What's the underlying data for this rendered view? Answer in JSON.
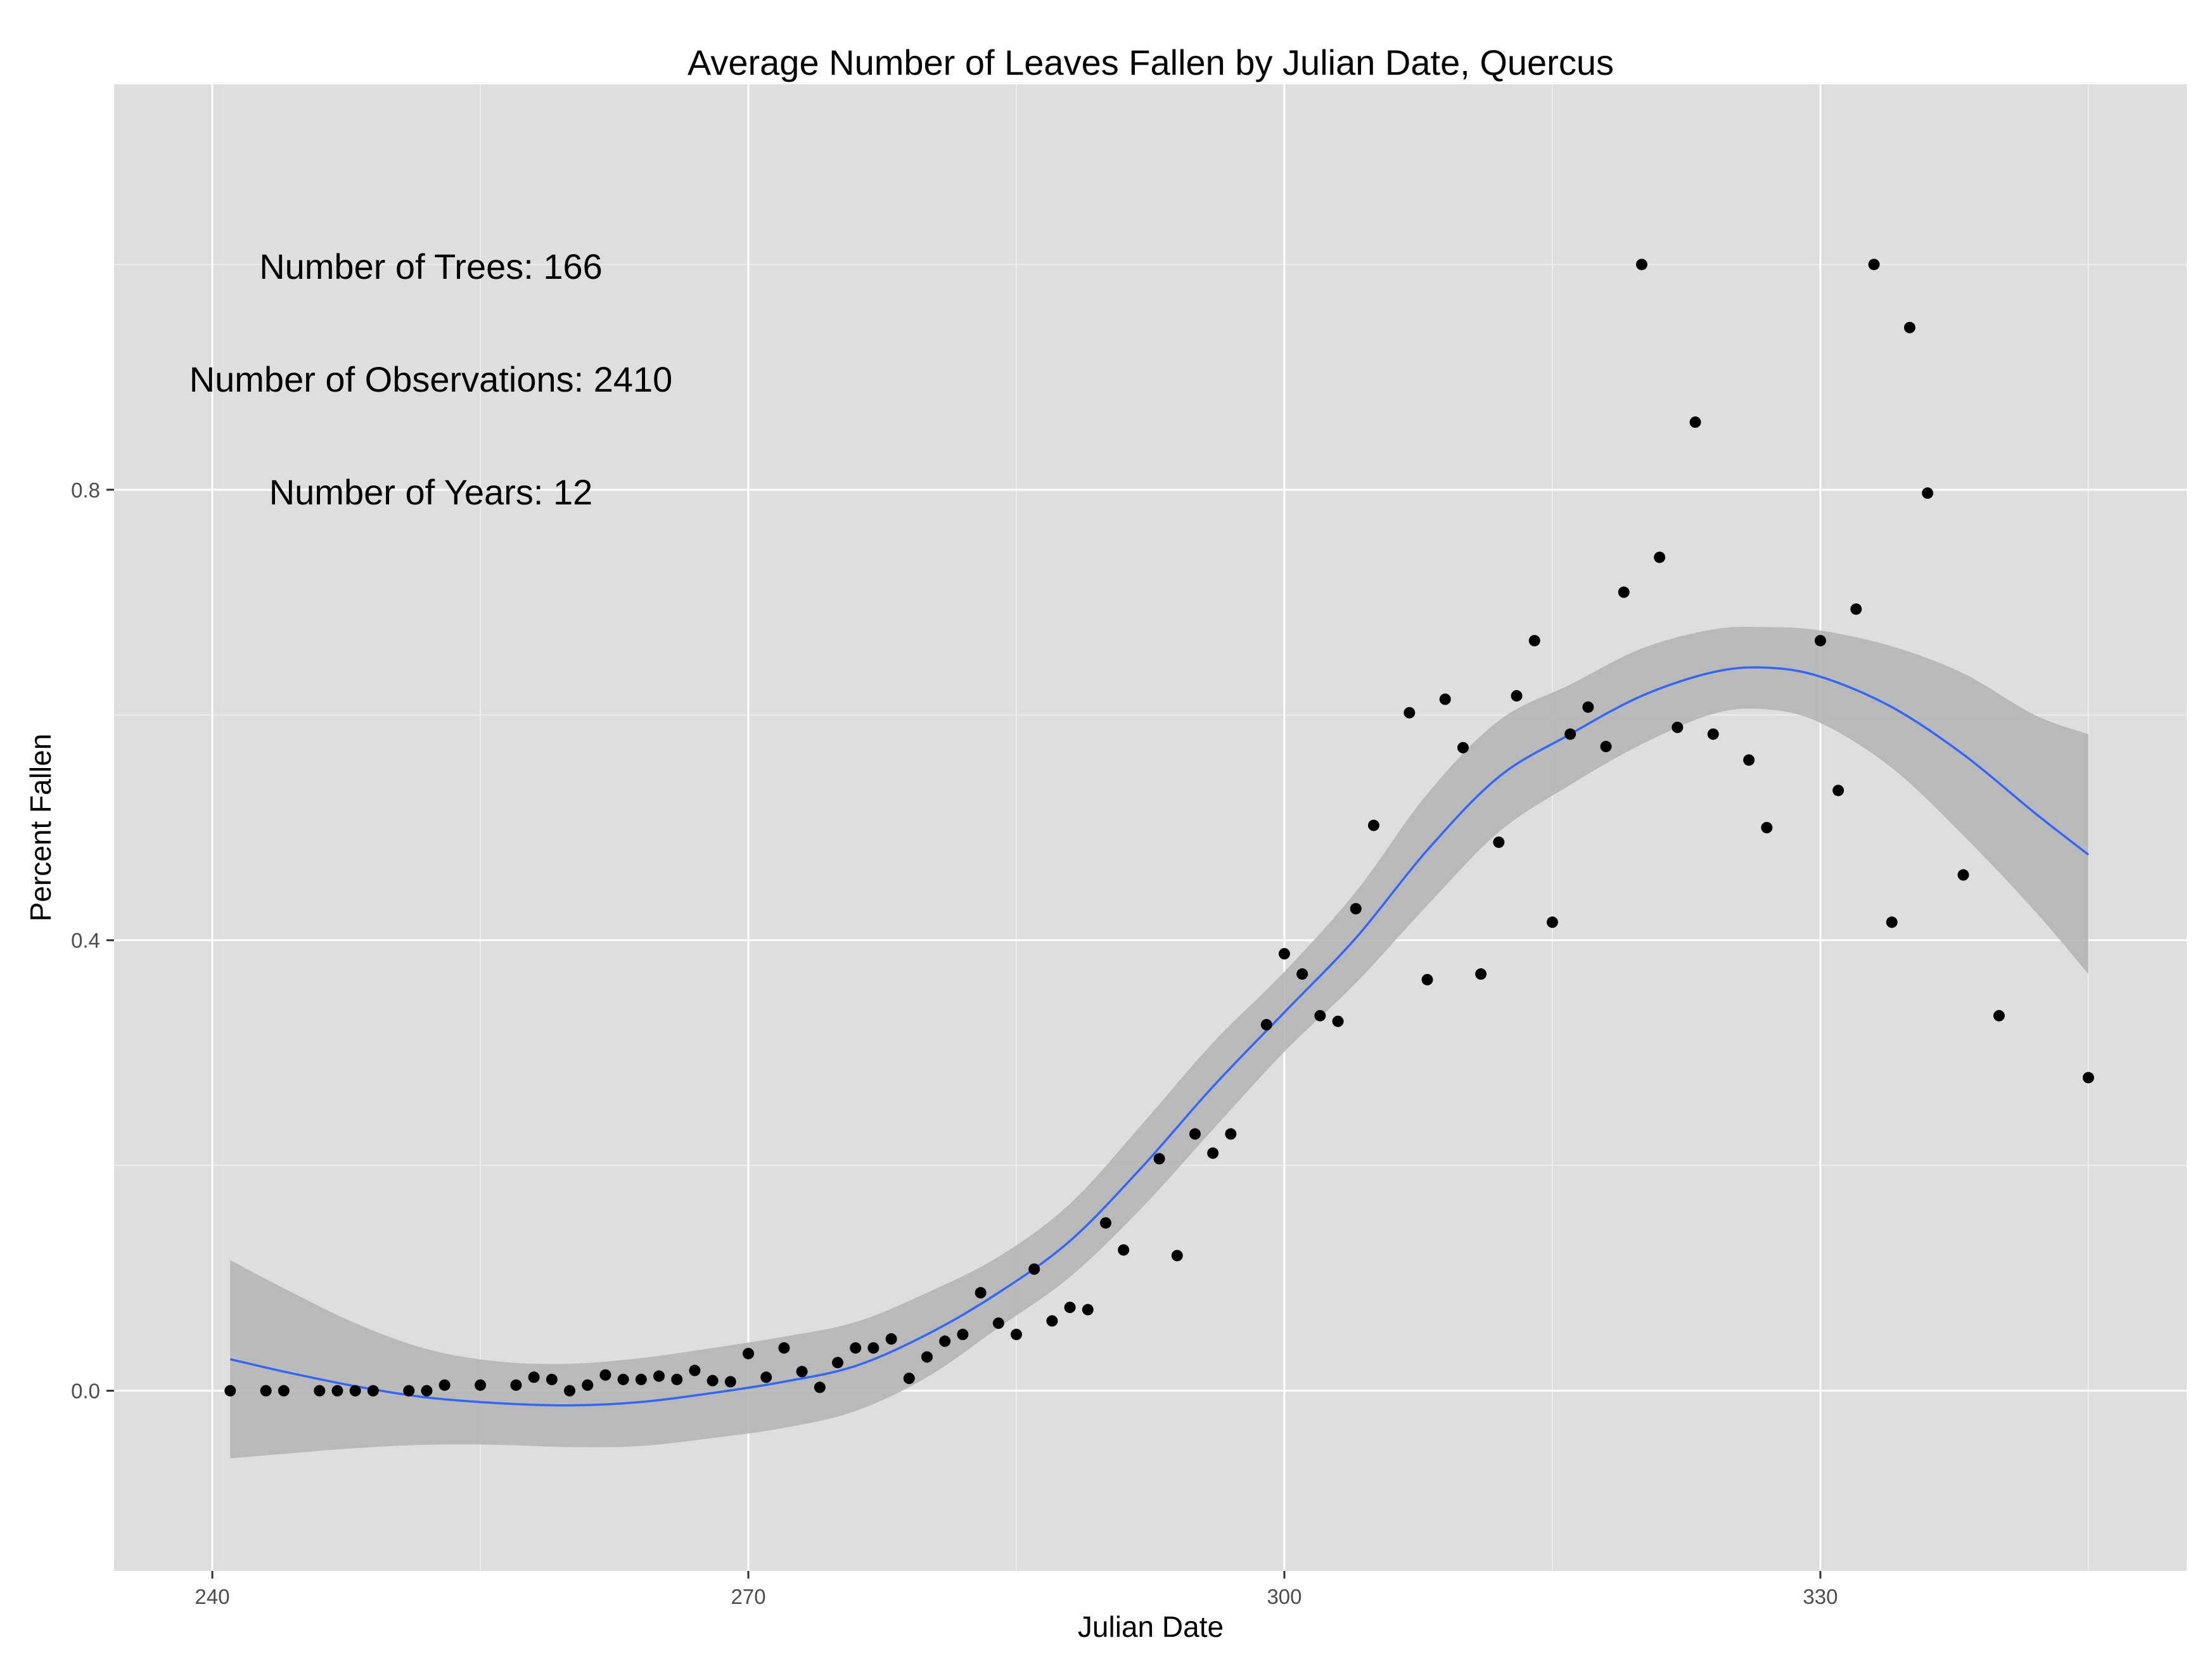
{
  "chart_data": {
    "type": "scatter",
    "title": "Average Number of Leaves Fallen by Julian Date, Quercus",
    "xlabel": "Julian Date",
    "ylabel": "Percent Fallen",
    "xlim": [
      234.5,
      350.5
    ],
    "ylim": [
      -0.16,
      1.16
    ],
    "x_ticks": [
      240,
      270,
      300,
      330
    ],
    "x_tick_labels": [
      "240",
      "270",
      "300",
      "330"
    ],
    "y_ticks": [
      0.0,
      0.4,
      0.8
    ],
    "y_tick_labels": [
      "0.0",
      "0.4",
      "0.8"
    ],
    "grid": true,
    "legend": "none",
    "annotations": [
      "Number of Trees: 166",
      "Number of Observations: 2410",
      "Number of Years: 12"
    ],
    "colors": {
      "panel": "#dedede",
      "grid": "#ffffff",
      "points": "#000000",
      "smooth_line": "#3366ff",
      "ribbon": "#b3b3b3"
    },
    "points": [
      [
        241,
        0.0
      ],
      [
        243,
        0.0
      ],
      [
        244,
        0.0
      ],
      [
        246,
        0.0
      ],
      [
        247,
        0.0
      ],
      [
        248,
        0.0
      ],
      [
        249,
        0.0
      ],
      [
        251,
        0.0
      ],
      [
        252,
        0.0
      ],
      [
        253,
        0.005
      ],
      [
        255,
        0.005
      ],
      [
        257,
        0.005
      ],
      [
        258,
        0.012
      ],
      [
        259,
        0.01
      ],
      [
        260,
        0.0
      ],
      [
        261,
        0.005
      ],
      [
        262,
        0.014
      ],
      [
        263,
        0.01
      ],
      [
        264,
        0.01
      ],
      [
        265,
        0.013
      ],
      [
        266,
        0.01
      ],
      [
        267,
        0.018
      ],
      [
        268,
        0.009
      ],
      [
        269,
        0.008
      ],
      [
        270,
        0.033
      ],
      [
        271,
        0.012
      ],
      [
        272,
        0.038
      ],
      [
        273,
        0.017
      ],
      [
        274,
        0.003
      ],
      [
        275,
        0.025
      ],
      [
        276,
        0.038
      ],
      [
        277,
        0.038
      ],
      [
        278,
        0.046
      ],
      [
        279,
        0.011
      ],
      [
        280,
        0.03
      ],
      [
        281,
        0.044
      ],
      [
        282,
        0.05
      ],
      [
        283,
        0.087
      ],
      [
        284,
        0.06
      ],
      [
        285,
        0.05
      ],
      [
        286,
        0.108
      ],
      [
        287,
        0.062
      ],
      [
        288,
        0.074
      ],
      [
        289,
        0.072
      ],
      [
        290,
        0.149
      ],
      [
        291,
        0.125
      ],
      [
        293,
        0.206
      ],
      [
        294,
        0.12
      ],
      [
        295,
        0.228
      ],
      [
        296,
        0.211
      ],
      [
        297,
        0.228
      ],
      [
        299,
        0.325
      ],
      [
        300,
        0.388
      ],
      [
        301,
        0.37
      ],
      [
        302,
        0.333
      ],
      [
        303,
        0.328
      ],
      [
        304,
        0.428
      ],
      [
        305,
        0.502
      ],
      [
        307,
        0.602
      ],
      [
        308,
        0.365
      ],
      [
        309,
        0.614
      ],
      [
        310,
        0.571
      ],
      [
        311,
        0.37
      ],
      [
        312,
        0.487
      ],
      [
        313,
        0.617
      ],
      [
        314,
        0.666
      ],
      [
        315,
        0.416
      ],
      [
        316,
        0.583
      ],
      [
        317,
        0.607
      ],
      [
        318,
        0.572
      ],
      [
        319,
        0.709
      ],
      [
        320,
        1.0
      ],
      [
        321,
        0.74
      ],
      [
        322,
        0.589
      ],
      [
        323,
        0.86
      ],
      [
        324,
        0.583
      ],
      [
        326,
        0.56
      ],
      [
        327,
        0.5
      ],
      [
        330,
        0.666
      ],
      [
        331,
        0.533
      ],
      [
        332,
        0.694
      ],
      [
        333,
        1.0
      ],
      [
        334,
        0.416
      ],
      [
        335,
        0.944
      ],
      [
        336,
        0.797
      ],
      [
        338,
        0.458
      ],
      [
        340,
        0.333
      ],
      [
        345,
        0.278
      ]
    ],
    "smooth": {
      "x": [
        241,
        244,
        248,
        252,
        256,
        260,
        264,
        268,
        272,
        276,
        280,
        284,
        288,
        292,
        296,
        300,
        304,
        308,
        312,
        316,
        320,
        324,
        327,
        330,
        334,
        338,
        342,
        345
      ],
      "y": [
        0.028,
        0.017,
        0.004,
        -0.006,
        -0.011,
        -0.013,
        -0.01,
        -0.002,
        0.008,
        0.022,
        0.05,
        0.087,
        0.133,
        0.198,
        0.27,
        0.336,
        0.402,
        0.48,
        0.545,
        0.583,
        0.617,
        0.638,
        0.642,
        0.634,
        0.607,
        0.565,
        0.513,
        0.476
      ],
      "ymin": [
        -0.06,
        -0.056,
        -0.051,
        -0.048,
        -0.048,
        -0.05,
        -0.049,
        -0.042,
        -0.033,
        -0.018,
        0.012,
        0.056,
        0.101,
        0.162,
        0.232,
        0.301,
        0.362,
        0.431,
        0.496,
        0.538,
        0.574,
        0.601,
        0.605,
        0.593,
        0.553,
        0.493,
        0.426,
        0.37
      ],
      "ymax": [
        0.116,
        0.091,
        0.06,
        0.037,
        0.026,
        0.024,
        0.029,
        0.038,
        0.048,
        0.061,
        0.087,
        0.119,
        0.166,
        0.236,
        0.309,
        0.372,
        0.443,
        0.53,
        0.595,
        0.627,
        0.659,
        0.676,
        0.678,
        0.675,
        0.661,
        0.637,
        0.6,
        0.583
      ]
    }
  }
}
